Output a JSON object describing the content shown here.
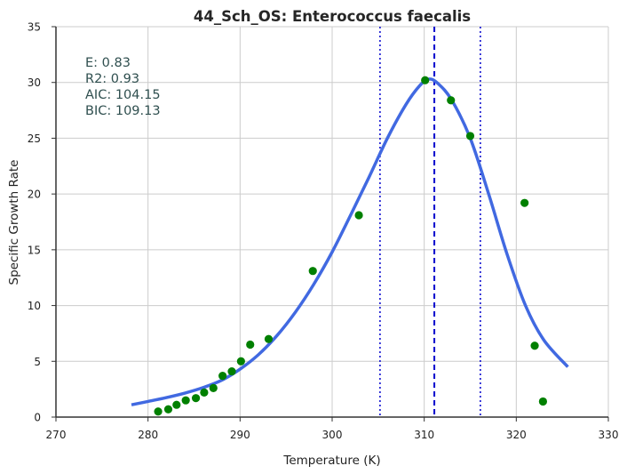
{
  "chart_data": {
    "type": "scatter",
    "title": "44_Sch_OS:  Enterococcus faecalis",
    "xlabel": "Temperature (K)",
    "ylabel": "Specific Growth Rate",
    "xlim": [
      270,
      330
    ],
    "ylim": [
      0,
      35
    ],
    "x_ticks": [
      "270",
      "280",
      "290",
      "300",
      "310",
      "320",
      "330"
    ],
    "y_ticks": [
      "0",
      "5",
      "10",
      "15",
      "20",
      "25",
      "30",
      "35"
    ],
    "grid": true,
    "series": [
      {
        "kind": "points",
        "color": "#008000",
        "points": [
          [
            281.1,
            0.5
          ],
          [
            282.2,
            0.7
          ],
          [
            283.1,
            1.1
          ],
          [
            284.1,
            1.5
          ],
          [
            285.2,
            1.7
          ],
          [
            286.1,
            2.2
          ],
          [
            287.1,
            2.6
          ],
          [
            288.1,
            3.7
          ],
          [
            289.1,
            4.1
          ],
          [
            290.1,
            5.0
          ],
          [
            291.1,
            6.5
          ],
          [
            293.1,
            7.0
          ],
          [
            297.9,
            13.1
          ],
          [
            302.9,
            18.1
          ],
          [
            310.1,
            30.2
          ],
          [
            312.9,
            28.4
          ],
          [
            315.0,
            25.2
          ],
          [
            320.9,
            19.2
          ],
          [
            322.0,
            6.4
          ],
          [
            322.9,
            1.4
          ]
        ]
      },
      {
        "kind": "fitted-curve",
        "color": "#4169e1",
        "points": [
          [
            278.2,
            1.1
          ],
          [
            280,
            1.4
          ],
          [
            282,
            1.75
          ],
          [
            284,
            2.15
          ],
          [
            286,
            2.65
          ],
          [
            288,
            3.3
          ],
          [
            290,
            4.3
          ],
          [
            292,
            5.6
          ],
          [
            294,
            7.3
          ],
          [
            296,
            9.4
          ],
          [
            298,
            11.9
          ],
          [
            300,
            14.8
          ],
          [
            302,
            18.1
          ],
          [
            304,
            21.5
          ],
          [
            306,
            25.0
          ],
          [
            308,
            28.0
          ],
          [
            309.5,
            29.7
          ],
          [
            310.5,
            30.3
          ],
          [
            311.5,
            29.9
          ],
          [
            313,
            28.4
          ],
          [
            315,
            25.0
          ],
          [
            317,
            20.0
          ],
          [
            319,
            14.6
          ],
          [
            321,
            10.0
          ],
          [
            323,
            6.9
          ],
          [
            325.6,
            4.5
          ]
        ]
      }
    ],
    "vlines": [
      {
        "x": 305.2,
        "style": "dotted",
        "color": "#0000cd"
      },
      {
        "x": 311.1,
        "style": "dashed",
        "color": "#0000cd"
      },
      {
        "x": 316.1,
        "style": "dotted",
        "color": "#0000cd"
      }
    ],
    "annotations": [
      "E:  0.83",
      "R2:  0.93",
      "AIC: 104.15",
      "BIC: 109.13"
    ]
  }
}
